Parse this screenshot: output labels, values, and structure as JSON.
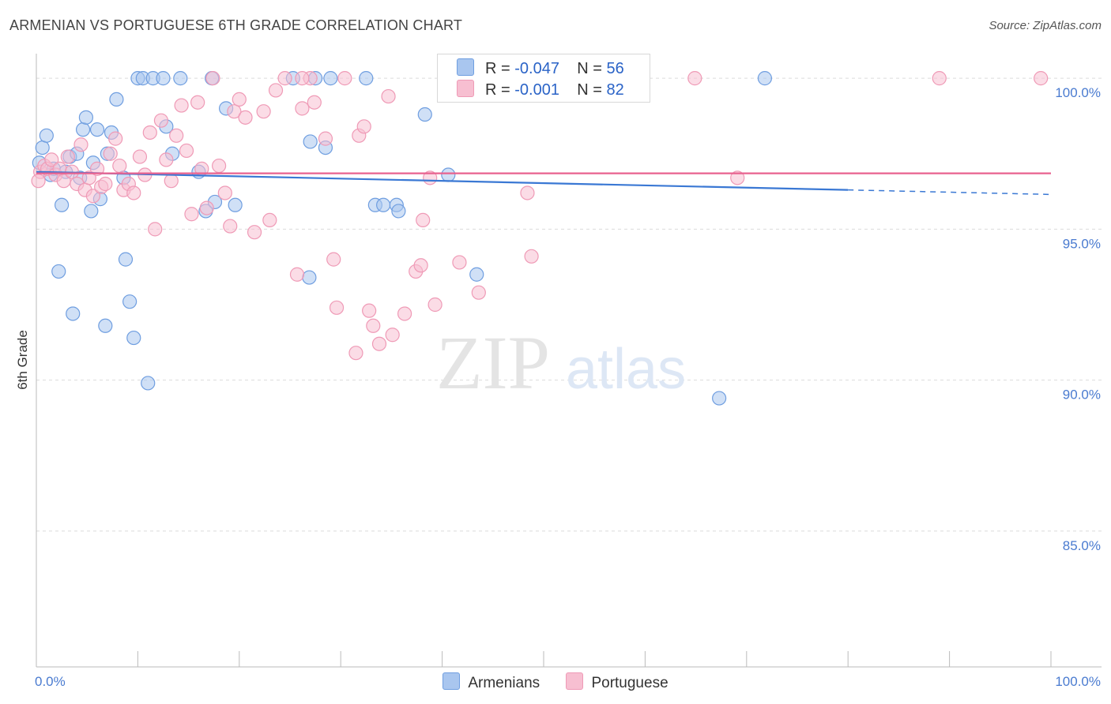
{
  "title": "ARMENIAN VS PORTUGUESE 6TH GRADE CORRELATION CHART",
  "source": "Source: ZipAtlas.com",
  "watermark": {
    "zip": "ZIP",
    "atlas": "atlas"
  },
  "colors": {
    "armenians_fill": "#a9c6ef",
    "armenians_stroke": "#6f9ee0",
    "armenians_line": "#3a78d4",
    "portuguese_fill": "#f7bfd1",
    "portuguese_stroke": "#ef9ab6",
    "portuguese_line": "#e8628f",
    "tick_text": "#4a7bd0",
    "grid": "#dcdcdc"
  },
  "legend": {
    "rows": [
      {
        "name": "armenians",
        "r_label": "R =",
        "r_value": "-0.047",
        "n_label": "N =",
        "n_value": "56"
      },
      {
        "name": "portuguese",
        "r_label": "R =",
        "r_value": "-0.001",
        "n_label": "N =",
        "n_value": "82"
      }
    ]
  },
  "bottom_legend": [
    "Armenians",
    "Portuguese"
  ],
  "chart_data": {
    "type": "scatter",
    "title": "ARMENIAN VS PORTUGUESE 6TH GRADE CORRELATION CHART",
    "xlabel": "",
    "ylabel": "6th Grade",
    "xlim": [
      0,
      100
    ],
    "ylim": [
      80.5,
      100.5
    ],
    "x_tick_labels": [
      "0.0%",
      "100.0%"
    ],
    "y_ticks": [
      85,
      90,
      95,
      100
    ],
    "y_tick_labels": [
      "85.0%",
      "90.0%",
      "95.0%",
      "100.0%"
    ],
    "grid": true,
    "legend_position": "top-center",
    "series": [
      {
        "name": "Armenians",
        "R": -0.047,
        "N": 56,
        "trend": {
          "x0": 0,
          "y0": 96.9,
          "x1": 80,
          "y1": 96.3,
          "dashed_to_x": 100,
          "dashed_to_y": 96.15
        },
        "points": [
          [
            0.6,
            97.7
          ],
          [
            1.0,
            98.1
          ],
          [
            1.4,
            96.8
          ],
          [
            1.7,
            97.0
          ],
          [
            2.2,
            93.6
          ],
          [
            2.5,
            95.8
          ],
          [
            2.9,
            96.9
          ],
          [
            3.3,
            97.4
          ],
          [
            3.6,
            92.2
          ],
          [
            4.0,
            97.5
          ],
          [
            4.3,
            96.7
          ],
          [
            4.6,
            98.3
          ],
          [
            4.9,
            98.7
          ],
          [
            5.4,
            95.6
          ],
          [
            5.6,
            97.2
          ],
          [
            6.0,
            98.3
          ],
          [
            6.3,
            96.0
          ],
          [
            6.8,
            91.8
          ],
          [
            7.0,
            97.5
          ],
          [
            7.4,
            98.2
          ],
          [
            7.9,
            99.3
          ],
          [
            8.6,
            96.7
          ],
          [
            8.8,
            94.0
          ],
          [
            9.2,
            92.6
          ],
          [
            9.6,
            91.4
          ],
          [
            10.0,
            100.0
          ],
          [
            10.5,
            100.0
          ],
          [
            11.0,
            89.9
          ],
          [
            11.5,
            100.0
          ],
          [
            12.5,
            100.0
          ],
          [
            12.8,
            98.4
          ],
          [
            13.4,
            97.5
          ],
          [
            14.2,
            100.0
          ],
          [
            16.0,
            96.9
          ],
          [
            16.7,
            95.6
          ],
          [
            17.3,
            100.0
          ],
          [
            17.6,
            95.9
          ],
          [
            18.7,
            99.0
          ],
          [
            19.6,
            95.8
          ],
          [
            25.3,
            100.0
          ],
          [
            26.9,
            93.4
          ],
          [
            27.0,
            97.9
          ],
          [
            27.5,
            100.0
          ],
          [
            28.5,
            97.7
          ],
          [
            29.0,
            100.0
          ],
          [
            32.5,
            100.0
          ],
          [
            33.4,
            95.8
          ],
          [
            34.2,
            95.8
          ],
          [
            35.5,
            95.8
          ],
          [
            35.7,
            95.6
          ],
          [
            38.3,
            98.8
          ],
          [
            40.6,
            96.8
          ],
          [
            43.4,
            93.5
          ],
          [
            67.3,
            89.4
          ],
          [
            71.8,
            100.0
          ],
          [
            0.3,
            97.2
          ]
        ]
      },
      {
        "name": "Portuguese",
        "R": -0.001,
        "N": 82,
        "trend": {
          "x0": 0,
          "y0": 96.85,
          "x1": 100,
          "y1": 96.85
        },
        "points": [
          [
            0.4,
            96.9
          ],
          [
            0.8,
            97.1
          ],
          [
            1.1,
            97.0
          ],
          [
            1.5,
            97.3
          ],
          [
            1.9,
            96.8
          ],
          [
            2.3,
            97.0
          ],
          [
            2.7,
            96.6
          ],
          [
            3.1,
            97.4
          ],
          [
            3.5,
            96.9
          ],
          [
            4.0,
            96.5
          ],
          [
            4.4,
            97.8
          ],
          [
            4.8,
            96.3
          ],
          [
            5.2,
            96.7
          ],
          [
            5.6,
            96.1
          ],
          [
            6.0,
            97.0
          ],
          [
            6.4,
            96.4
          ],
          [
            6.8,
            96.5
          ],
          [
            7.3,
            97.5
          ],
          [
            7.8,
            98.0
          ],
          [
            8.2,
            97.1
          ],
          [
            8.6,
            96.3
          ],
          [
            9.1,
            96.5
          ],
          [
            9.6,
            96.2
          ],
          [
            10.2,
            97.4
          ],
          [
            10.7,
            96.8
          ],
          [
            11.2,
            98.2
          ],
          [
            11.7,
            95.0
          ],
          [
            12.3,
            98.6
          ],
          [
            12.8,
            97.3
          ],
          [
            13.3,
            96.6
          ],
          [
            13.8,
            98.1
          ],
          [
            14.3,
            99.1
          ],
          [
            14.8,
            97.6
          ],
          [
            15.3,
            95.5
          ],
          [
            15.9,
            99.2
          ],
          [
            16.3,
            97.0
          ],
          [
            16.8,
            95.7
          ],
          [
            17.4,
            100.0
          ],
          [
            18.0,
            97.1
          ],
          [
            18.6,
            96.2
          ],
          [
            19.1,
            95.1
          ],
          [
            19.5,
            98.9
          ],
          [
            20.0,
            99.3
          ],
          [
            20.6,
            98.7
          ],
          [
            21.5,
            94.9
          ],
          [
            22.4,
            98.9
          ],
          [
            23.0,
            95.3
          ],
          [
            23.6,
            99.6
          ],
          [
            24.5,
            100.0
          ],
          [
            25.7,
            93.5
          ],
          [
            26.2,
            99.0
          ],
          [
            27.0,
            100.0
          ],
          [
            27.4,
            99.2
          ],
          [
            28.5,
            98.0
          ],
          [
            29.3,
            94.0
          ],
          [
            29.6,
            92.4
          ],
          [
            30.4,
            100.0
          ],
          [
            31.5,
            90.9
          ],
          [
            31.8,
            98.1
          ],
          [
            32.3,
            98.4
          ],
          [
            32.8,
            92.3
          ],
          [
            33.2,
            91.8
          ],
          [
            33.8,
            91.2
          ],
          [
            34.7,
            99.4
          ],
          [
            35.1,
            91.5
          ],
          [
            36.3,
            92.2
          ],
          [
            37.4,
            93.6
          ],
          [
            37.9,
            93.8
          ],
          [
            38.1,
            95.3
          ],
          [
            38.8,
            96.7
          ],
          [
            39.3,
            92.5
          ],
          [
            41.0,
            100.0
          ],
          [
            41.7,
            93.9
          ],
          [
            43.6,
            92.9
          ],
          [
            48.4,
            96.2
          ],
          [
            48.8,
            94.1
          ],
          [
            64.9,
            100.0
          ],
          [
            69.1,
            96.7
          ],
          [
            89.0,
            100.0
          ],
          [
            99.0,
            100.0
          ],
          [
            0.2,
            96.6
          ],
          [
            26.2,
            100.0
          ]
        ]
      }
    ]
  }
}
